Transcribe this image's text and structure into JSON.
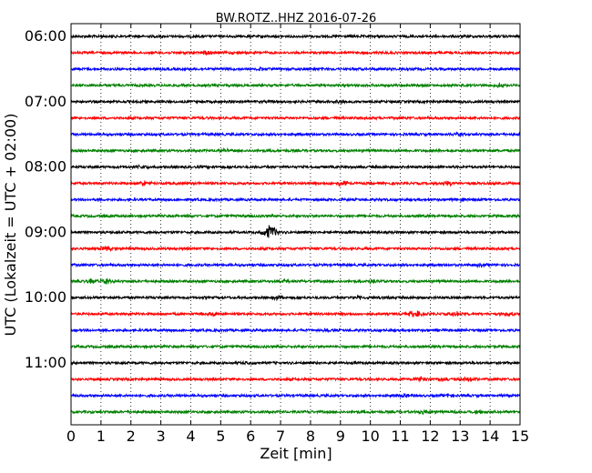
{
  "chart_data": {
    "type": "line",
    "title": "BW.ROTZ..HHZ 2016-07-26",
    "xlabel": "Zeit  [min]",
    "ylabel": "UTC (Lokalzeit = UTC + 02:00)",
    "xlim": [
      0,
      15
    ],
    "x_ticks": [
      "0",
      "1",
      "2",
      "3",
      "4",
      "5",
      "6",
      "7",
      "8",
      "9",
      "10",
      "11",
      "12",
      "13",
      "14",
      "15"
    ],
    "y_ticks": [
      "06:00",
      "07:00",
      "08:00",
      "09:00",
      "10:00",
      "11:00"
    ],
    "grid": {
      "vertical": true,
      "horizontal": false,
      "style": "dotted"
    },
    "trace_colors": [
      "#000000",
      "#ff0000",
      "#0000ff",
      "#008000"
    ],
    "traces": [
      {
        "start": "06:00",
        "events": []
      },
      {
        "start": "06:15",
        "events": [
          {
            "t": 4.6,
            "amp": 0.35
          }
        ]
      },
      {
        "start": "06:30",
        "events": [
          {
            "t": 6.3,
            "amp": 0.25
          }
        ]
      },
      {
        "start": "06:45",
        "events": [
          {
            "t": 14.3,
            "amp": 0.3
          }
        ]
      },
      {
        "start": "07:00",
        "events": [
          {
            "t": 5.8,
            "amp": 0.2
          },
          {
            "t": 9.0,
            "amp": 0.2
          }
        ]
      },
      {
        "start": "07:15",
        "events": []
      },
      {
        "start": "07:30",
        "events": [
          {
            "t": 12.9,
            "amp": 0.2
          }
        ]
      },
      {
        "start": "07:45",
        "events": [
          {
            "t": 5.2,
            "amp": 0.2
          }
        ]
      },
      {
        "start": "08:00",
        "events": [
          {
            "t": 2.4,
            "amp": 0.2
          }
        ]
      },
      {
        "start": "08:15",
        "events": [
          {
            "t": 2.5,
            "amp": 0.35
          },
          {
            "t": 9.0,
            "amp": 0.45
          },
          {
            "t": 12.6,
            "amp": 0.3
          }
        ]
      },
      {
        "start": "08:30",
        "events": [
          {
            "t": 13.0,
            "amp": 0.2
          }
        ]
      },
      {
        "start": "08:45",
        "events": []
      },
      {
        "start": "09:00",
        "events": [
          {
            "t": 6.65,
            "amp": 1.1
          }
        ]
      },
      {
        "start": "09:15",
        "events": [
          {
            "t": 1.2,
            "amp": 0.3
          }
        ]
      },
      {
        "start": "09:30",
        "events": [
          {
            "t": 13.7,
            "amp": 0.25
          }
        ]
      },
      {
        "start": "09:45",
        "events": [
          {
            "t": 0.7,
            "amp": 0.45
          },
          {
            "t": 1.2,
            "amp": 0.35
          },
          {
            "t": 7.1,
            "amp": 0.25
          },
          {
            "t": 10.0,
            "amp": 0.25
          }
        ]
      },
      {
        "start": "10:00",
        "events": [
          {
            "t": 6.9,
            "amp": 0.25
          },
          {
            "t": 9.6,
            "amp": 0.25
          },
          {
            "t": 10.6,
            "amp": 0.25
          }
        ]
      },
      {
        "start": "10:15",
        "events": [
          {
            "t": 4.8,
            "amp": 0.3
          },
          {
            "t": 11.5,
            "amp": 0.55
          },
          {
            "t": 12.9,
            "amp": 0.35
          },
          {
            "t": 14.6,
            "amp": 0.3
          }
        ]
      },
      {
        "start": "10:30",
        "events": [
          {
            "t": 8.5,
            "amp": 0.2
          }
        ]
      },
      {
        "start": "10:45",
        "events": []
      },
      {
        "start": "11:00",
        "events": [
          {
            "t": 5.9,
            "amp": 0.15
          }
        ]
      },
      {
        "start": "11:15",
        "events": [
          {
            "t": 11.7,
            "amp": 0.35
          },
          {
            "t": 12.4,
            "amp": 0.3
          },
          {
            "t": 13.3,
            "amp": 0.3
          }
        ]
      },
      {
        "start": "11:30",
        "events": [
          {
            "t": 11.1,
            "amp": 0.3
          },
          {
            "t": 12.6,
            "amp": 0.25
          }
        ]
      },
      {
        "start": "11:45",
        "events": [
          {
            "t": 11.8,
            "amp": 0.3
          },
          {
            "t": 13.6,
            "amp": 0.35
          },
          {
            "t": 12.9,
            "amp": 0.2
          }
        ]
      }
    ]
  }
}
